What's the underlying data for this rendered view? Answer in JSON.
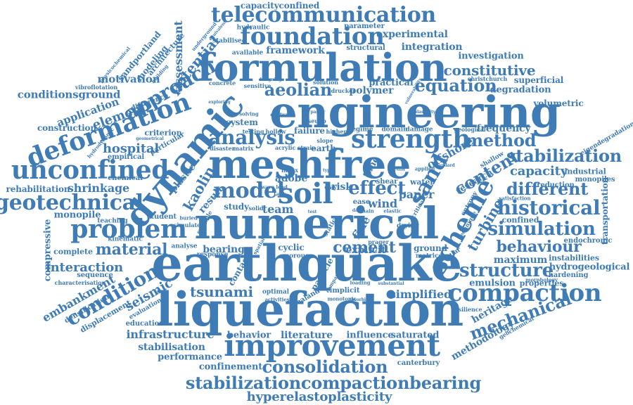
{
  "words": {
    "earthquake": "earthquake",
    "liquefaction": "liquefaction",
    "numerical": "numerical",
    "engineering": "engineering",
    "meshfree": "meshfree",
    "formulation": "formulation",
    "dynamic": "dynamic",
    "improvement": "improvement",
    "deformation": "deformation",
    "unconfined": "unconfined",
    "telecommunication": "telecommunication",
    "foundation": "foundation",
    "strength": "strength",
    "problem": "problem",
    "geotechnical": "geotechnical",
    "compaction": "compaction",
    "stabilization": "stabilization",
    "approach": "approach",
    "scheme": "scheme",
    "soil": "soil",
    "model": "model",
    "analysis": "analysis",
    "historical": "historical",
    "condition": "condition",
    "mechanical": "mechanical",
    "structure": "structure",
    "consolidation": "consolidation",
    "stabilizationcompactionbearing": "stabilizationcompactionbearing",
    "hyperelastoplasticity": "hyperelastoplasticity",
    "equation": "equation",
    "aeolian": "aeolian",
    "constitutive": "constitutive",
    "method": "method",
    "simulation": "simulation",
    "content": "content",
    "different": "different",
    "behaviour": "behaviour",
    "sand": "sand",
    "turbine": "turbine",
    "material": "material",
    "cement": "cement",
    "interaction": "interaction",
    "seismic": "seismic",
    "tsunami": "tsunami",
    "infrastructure": "infrastructure",
    "shrinkage": "shrinkage",
    "hospital": "hospital",
    "kaolin": "kaolin",
    "potential": "potential",
    "assessment": "assessment",
    "capacityconfined": "capacityconfined",
    "framework": "framework",
    "integration": "integration",
    "experimental": "experimental",
    "investigation": "investigation",
    "motivation": "motivation",
    "conditionsground": "conditionsground",
    "application": "application",
    "element": "element",
    "construction": "construction",
    "rehabilitation": "rehabilitation",
    "embankment": "embankment",
    "compressive": "compressive",
    "monopile": "monopile",
    "effect": "effect",
    "sand2": "sand",
    "wind": "wind",
    "paper": "paper",
    "team": "team",
    "capacity": "capacity",
    "maximum": "maximum",
    "heritage": "heritage",
    "methodology": "methodology",
    "emulsion": "emulsion",
    "simplified": "simplified",
    "bearing": "bearing",
    "explicit": "explicit",
    "behavior": "behavior",
    "literature": "literature",
    "influence": "influence",
    "saturated": "saturated",
    "stabilisation": "stabilisation",
    "performance": "performance",
    "confinement": "confinement",
    "canterbury": "canterbury",
    "hydrogeological": "hydrogeological",
    "instabilities": "instabilities",
    "transportation": "transportation",
    "frequency": "frequency",
    "volumetric": "volumetric",
    "degradation": "degradation",
    "superficial": "superficial",
    "polymer": "polymer",
    "practical": "practical",
    "adobe": "adobe",
    "risk": "risk",
    "earth": "earth",
    "failure": "failure",
    "system": "system",
    "result": "result",
    "plastic": "plastic",
    "study": "study",
    "offshore": "offshore",
    "research": "research",
    "fine": "fine",
    "time": "time",
    "state": "state",
    "shear": "shear",
    "water": "water",
    "particle": "particle",
    "contact": "contact",
    "cyclic": "cyclic",
    "ground": "ground",
    "properties": "properties",
    "hardening": "hardening",
    "reduction": "reduction",
    "industrial": "industrial",
    "monopiles": "monopiles",
    "confined": "confined",
    "endochronic": "endochronic",
    "eigendegradation": "eigendegradation",
    "structural": "structural",
    "parameter": "parameter",
    "hydraulic": "hydraulic",
    "stabilised": "stabilised",
    "available": "available",
    "aeolian2": "solution",
    "drucker": "drucker",
    "christchurch": "christchurch",
    "modeling": "modeling",
    "architecture": "architecture",
    "sandportland": "sandportland",
    "sequence": "sequence",
    "characterisation": "characterisation",
    "densification": "densification",
    "displacement": "displacement",
    "education": "education",
    "evaluation": "evaluation",
    "kinematic": "kinematic",
    "complete": "complete",
    "student": "student",
    "teaching": "teaching",
    "criterion": "criterion",
    "particular": "particular",
    "empirical": "empirical",
    "chemical": "chemical",
    "difference": "difference",
    "vibroflotation": "vibroflotation",
    "domain": "domain",
    "damage": "damage",
    "regime": "regime",
    "drying": "drying",
    "matrice": "matrice",
    "granular": "granular",
    "implicit": "implicit",
    "zealand": "zealand",
    "porous": "porous",
    "analyse": "analyse",
    "response": "response",
    "optimal": "optimal",
    "activities": "activities",
    "concrete": "concrete",
    "sensitive": "sensitive",
    "sandy": "sandy",
    "ease": "ease",
    "index": "index",
    "entropy": "entropy",
    "technique": "technique",
    "geological": "geological",
    "morphology": "morphology",
    "geochemical": "geochemical",
    "resilience": "resilience",
    "acrylic": "acrylic strain",
    "hollow": "hollow",
    "testing": "testing",
    "disaster": "disaster",
    "matrix": "matrix",
    "central": "central",
    "solving": "solving",
    "higher": "higher",
    "pseudo": "pseudo",
    "slope": "slope",
    "clay": "clay",
    "wave": "wave load",
    "tank": "tank",
    "solid": "solid",
    "media": "media",
    "applied": "applied",
    "static": "static",
    "main": "main",
    "elastic": "elastic",
    "critical": "critical",
    "buried": "buried",
    "simulate": "simulate",
    "example": "example",
    "geometrical": "geometrical",
    "hydrodynamic": "hydrodynamic",
    "physicochemical": "physicochemical",
    "building": "building",
    "underground": "underground",
    "equivalent": "equivalent",
    "prager": "prager",
    "spatial": "spatial",
    "loading": "loading",
    "absorbing": "absorbing",
    "monotonic": "monotonic",
    "substantial": "substantial",
    "comparison": "comparison",
    "standard": "standard",
    "satisfaction": "satisfaction",
    "shallow": "shallow",
    "vulnerability": "vulnerability",
    "plasticity": "plasticity",
    "designing": "designing",
    "exploring": "exploring",
    "pastor": "pastor",
    "lime": "lime",
    "dam": "dam",
    "test": "test",
    "type": "type"
  },
  "colors": {
    "text": "#3f7cb6",
    "background": "#ffffff"
  }
}
